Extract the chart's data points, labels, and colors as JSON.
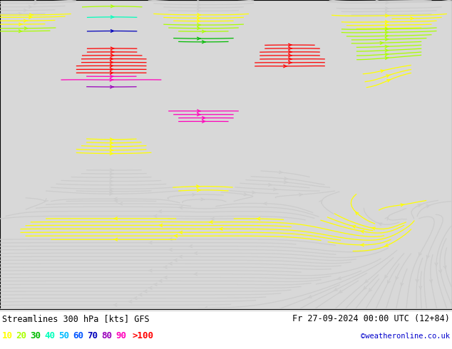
{
  "title_left": "Streamlines 300 hPa [kts] GFS",
  "title_right": "Fr 27-09-2024 00:00 UTC (12+84)",
  "credit": "©weatheronline.co.uk",
  "legend_values": [
    "10",
    "20",
    "30",
    "40",
    "50",
    "60",
    "70",
    "80",
    "90",
    ">100"
  ],
  "legend_colors": [
    "#ffff00",
    "#aaff00",
    "#00bb00",
    "#00ffbb",
    "#00bbff",
    "#0055ff",
    "#0000bb",
    "#9900bb",
    "#ff00bb",
    "#ff0000"
  ],
  "background_color": "#ffffff",
  "ocean_color": "#d8d8d8",
  "land_color": "#d4edaa",
  "coast_color": "#888888",
  "border_color": "#aaaaaa",
  "figsize": [
    6.34,
    4.9
  ],
  "dpi": 100,
  "lon_min": 60,
  "lon_max": 180,
  "lat_min": -15,
  "lat_max": 72,
  "title_fontsize": 8.5,
  "legend_fontsize": 9,
  "credit_fontsize": 7.5,
  "text_color": "#000000",
  "speeds": [
    0,
    10,
    20,
    30,
    40,
    50,
    60,
    70,
    80,
    90,
    100,
    150
  ],
  "stream_colors": [
    "#cccccc",
    "#ffff00",
    "#aaff00",
    "#00bb00",
    "#00ffbb",
    "#00bbff",
    "#0055ff",
    "#0000bb",
    "#9900bb",
    "#ff00bb",
    "#ff0000"
  ]
}
